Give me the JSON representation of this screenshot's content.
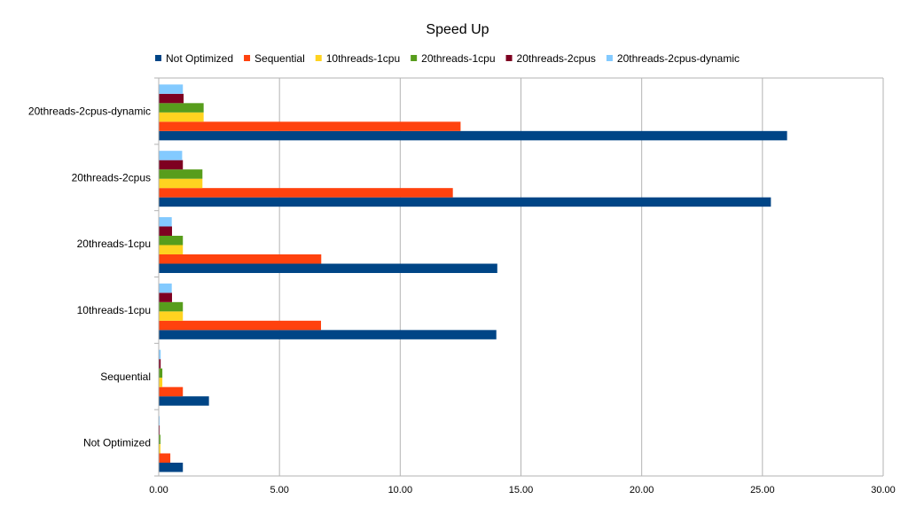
{
  "chart_data": {
    "type": "bar",
    "orientation": "horizontal",
    "title": "Speed Up",
    "xlabel": "",
    "ylabel": "",
    "xlim": [
      0,
      30
    ],
    "x_ticks": [
      "0.00",
      "5.00",
      "10.00",
      "15.00",
      "20.00",
      "25.00",
      "30.00"
    ],
    "grid": "vertical",
    "legend_position": "top",
    "categories": [
      "Not Optimized",
      "Sequential",
      "10threads-1cpu",
      "20threads-1cpu",
      "20threads-2cpus",
      "20threads-2cpus-dynamic"
    ],
    "series": [
      {
        "name": "Not Optimized",
        "color": "#004586",
        "values": [
          1.0,
          2.08,
          13.98,
          14.02,
          25.35,
          26.02
        ]
      },
      {
        "name": "Sequential",
        "color": "#ff420e",
        "values": [
          0.48,
          1.0,
          6.72,
          6.73,
          12.18,
          12.5
        ]
      },
      {
        "name": "10threads-1cpu",
        "color": "#ffd320",
        "values": [
          0.07,
          0.15,
          1.0,
          1.0,
          1.81,
          1.86
        ]
      },
      {
        "name": "20threads-1cpu",
        "color": "#579d1c",
        "values": [
          0.07,
          0.15,
          1.0,
          1.0,
          1.81,
          1.86
        ]
      },
      {
        "name": "20threads-2cpus",
        "color": "#7e0021",
        "values": [
          0.04,
          0.08,
          0.55,
          0.55,
          1.0,
          1.03
        ]
      },
      {
        "name": "20threads-2cpus-dynamic",
        "color": "#83caff",
        "values": [
          0.04,
          0.08,
          0.54,
          0.54,
          0.97,
          1.0
        ]
      }
    ]
  }
}
